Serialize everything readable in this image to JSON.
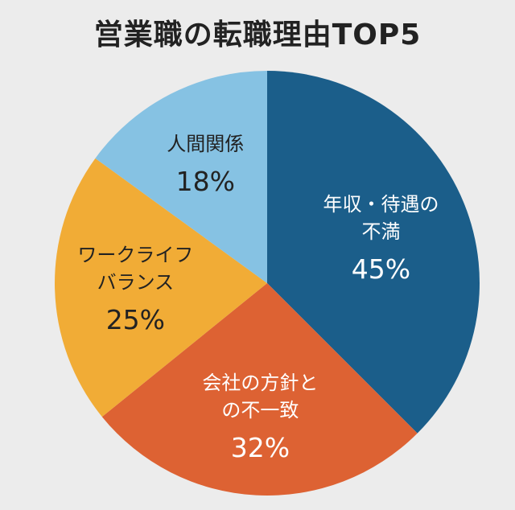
{
  "chart_data": {
    "type": "pie",
    "title": "営業職の転職理由TOP5",
    "slices": [
      {
        "label_lines": [
          "年収・待遇の",
          "不満"
        ],
        "percent_label": "45%",
        "value": 45,
        "color": "#1b5e8a",
        "text_color": "#ffffff"
      },
      {
        "label_lines": [
          "会社の方針と",
          "の不一致"
        ],
        "percent_label": "32%",
        "value": 32,
        "color": "#dd6233",
        "text_color": "#ffffff"
      },
      {
        "label_lines": [
          "ワークライフ",
          "バランス"
        ],
        "percent_label": "25%",
        "value": 25,
        "color": "#f1ac36",
        "text_color": "#222222"
      },
      {
        "label_lines": [
          "人間関係"
        ],
        "percent_label": "18%",
        "value": 18,
        "color": "#86c2e3",
        "text_color": "#222222"
      }
    ],
    "start_angle_deg": 0,
    "direction": "clockwise",
    "legend": "none"
  }
}
